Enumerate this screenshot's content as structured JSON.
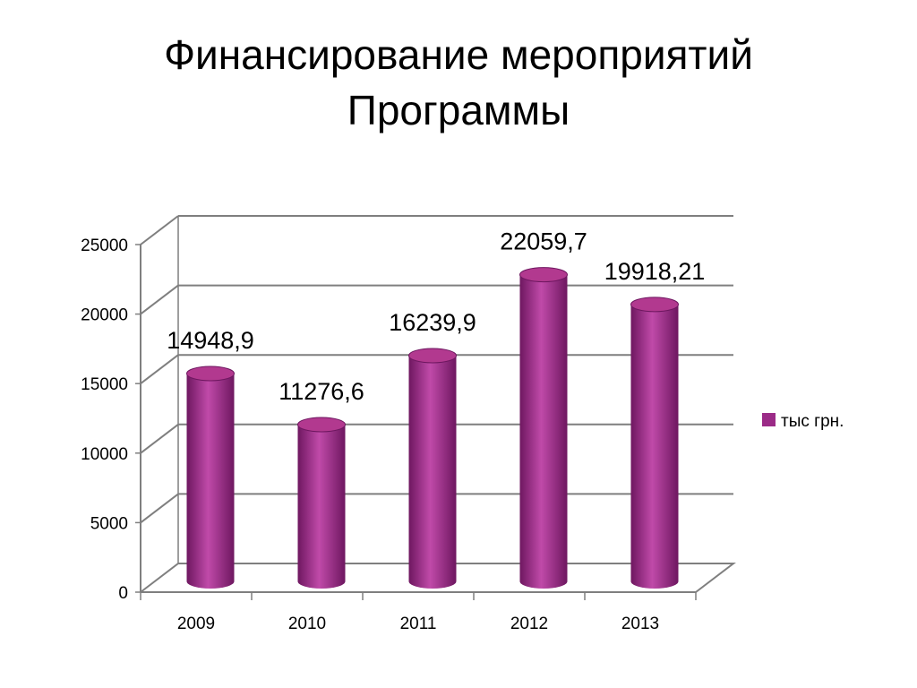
{
  "slide": {
    "title_line1": "Финансирование мероприятий",
    "title_line2": "Программы"
  },
  "chart_data": {
    "type": "bar",
    "title": "",
    "xlabel": "",
    "ylabel": "",
    "categories": [
      "2009",
      "2010",
      "2011",
      "2012",
      "2013"
    ],
    "series": [
      {
        "name": "тыс грн.",
        "values": [
          14948.9,
          11276.6,
          16239.9,
          22059.7,
          19918.21
        ],
        "labels": [
          "14948,9",
          "11276,6",
          "16239,9",
          "22059,7",
          "19918,21"
        ]
      }
    ],
    "ylim": [
      0,
      25000
    ],
    "yticks": [
      "0",
      "5000",
      "10000",
      "15000",
      "20000",
      "25000"
    ],
    "grid": true,
    "legend_position": "right",
    "colors": {
      "bar": "#9b2b87",
      "bar_light": "#c04aa9",
      "bar_dark": "#6e1760",
      "bar_top": "#b2398f",
      "grid": "#7f7f7f"
    }
  }
}
